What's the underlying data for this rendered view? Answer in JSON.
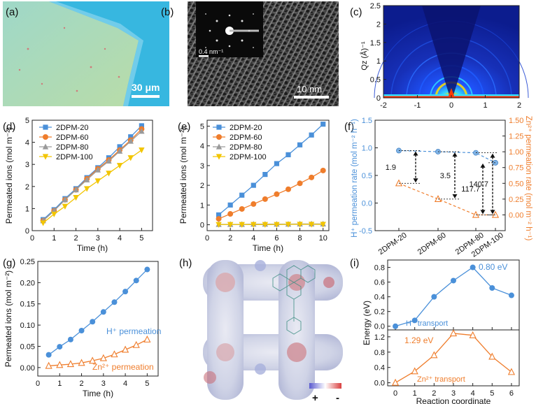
{
  "panel_labels": {
    "a": "(a)",
    "b": "(b)",
    "c": "(c)",
    "d": "(d)",
    "e": "(e)",
    "f": "(f)",
    "g": "(g)",
    "h": "(h)",
    "i": "(i)"
  },
  "colors": {
    "blue": "#4a90d9",
    "orange": "#ef7d2c",
    "gray": "#9a9a9a",
    "yellow": "#f2c500",
    "black": "#222222"
  },
  "panel_a": {
    "scale_bar": "30 μm"
  },
  "panel_b": {
    "inset_scale": "0.4 nm⁻¹",
    "scale_bar": "10 nm"
  },
  "panel_c": {
    "ylabel": "Qz (Å)⁻¹"
  },
  "panel_h": {
    "plus": "+",
    "minus": "-"
  },
  "chart_data": [
    {
      "id": "c",
      "type": "heatmap",
      "title": "",
      "xlabel": "",
      "ylabel": "Qz (Å)⁻¹",
      "xlim": [
        -2,
        2
      ],
      "ylim": [
        0,
        2.5
      ],
      "xticks": [
        -2,
        -1,
        0,
        1,
        2
      ],
      "yticks": [
        0,
        0.5,
        1,
        1.5,
        2,
        2.5
      ]
    },
    {
      "id": "d",
      "type": "line",
      "xlabel": "Time (h)",
      "ylabel": "Permeated ions (mol m⁻²)",
      "xlim": [
        0,
        5.5
      ],
      "ylim": [
        0,
        5
      ],
      "xticks": [
        0,
        1,
        2,
        3,
        4,
        5
      ],
      "yticks": [
        0,
        1,
        2,
        3,
        4,
        5
      ],
      "x": [
        0.5,
        1,
        1.5,
        2,
        2.5,
        3,
        3.5,
        4,
        4.5,
        5
      ],
      "series": [
        {
          "name": "2DPM-20",
          "color": "#4a90d9",
          "marker": "square",
          "values": [
            0.5,
            0.95,
            1.45,
            1.9,
            2.4,
            2.85,
            3.3,
            3.8,
            4.25,
            4.75
          ]
        },
        {
          "name": "2DPM-60",
          "color": "#ef7d2c",
          "marker": "circle",
          "values": [
            0.45,
            0.9,
            1.4,
            1.85,
            2.35,
            2.8,
            3.2,
            3.65,
            4.1,
            4.6
          ]
        },
        {
          "name": "2DPM-80",
          "color": "#9a9a9a",
          "marker": "triangle",
          "values": [
            0.45,
            0.9,
            1.4,
            1.85,
            2.3,
            2.75,
            3.15,
            3.6,
            4.05,
            4.5
          ]
        },
        {
          "name": "2DPM-100",
          "color": "#f2c500",
          "marker": "tri-down",
          "values": [
            0.35,
            0.75,
            1.1,
            1.5,
            1.9,
            2.25,
            2.6,
            2.95,
            3.3,
            3.65
          ]
        }
      ]
    },
    {
      "id": "e",
      "type": "line",
      "xlabel": "Time (h)",
      "ylabel": "Permeated ions (mol m⁻²)",
      "xlim": [
        0,
        10.5
      ],
      "ylim": [
        -0.3,
        5.3
      ],
      "xticks": [
        0,
        2,
        4,
        6,
        8,
        10
      ],
      "yticks": [
        0,
        1,
        2,
        3,
        4,
        5
      ],
      "x": [
        1,
        2,
        3,
        4,
        5,
        6,
        7,
        8,
        9,
        10
      ],
      "series": [
        {
          "name": "2DPM-20",
          "color": "#4a90d9",
          "marker": "square",
          "values": [
            0.5,
            1.0,
            1.5,
            2.0,
            2.55,
            3.1,
            3.55,
            4.05,
            4.55,
            5.1
          ]
        },
        {
          "name": "2DPM-60",
          "color": "#ef7d2c",
          "marker": "circle",
          "values": [
            0.3,
            0.55,
            0.8,
            1.05,
            1.3,
            1.55,
            1.8,
            2.1,
            2.4,
            2.75
          ]
        },
        {
          "name": "2DPM-80",
          "color": "#9a9a9a",
          "marker": "triangle",
          "values": [
            0.02,
            0.02,
            0.02,
            0.03,
            0.03,
            0.03,
            0.03,
            0.04,
            0.04,
            0.04
          ]
        },
        {
          "name": "2DPM-100",
          "color": "#f2c500",
          "marker": "tri-down",
          "values": [
            0.01,
            0.01,
            0.01,
            0.01,
            0.01,
            0.01,
            0.02,
            0.02,
            0.02,
            0.02
          ]
        }
      ]
    },
    {
      "id": "f",
      "type": "line",
      "ylabel_left": "H⁺ permeation rate (mol m⁻² h⁻¹)",
      "ylabel_right": "Zn²⁺ permeation rate (mol m⁻² h⁻¹)",
      "categories": [
        "2DPM-20",
        "2DPM-60",
        "2DPM-80",
        "2DPM-100"
      ],
      "ylim_left": [
        -0.5,
        1.5
      ],
      "ylim_right": [
        -0.25,
        1.5
      ],
      "yticks_left": [
        -0.5,
        0.0,
        0.5,
        1.0,
        1.5
      ],
      "yticks_right": [
        0.0,
        0.25,
        0.5,
        0.75,
        1.0,
        1.25,
        1.5
      ],
      "series": [
        {
          "name": "H⁺",
          "axis": "left",
          "color": "#4a90d9",
          "values": [
            0.95,
            0.93,
            0.91,
            0.73
          ]
        },
        {
          "name": "Zn²⁺",
          "axis": "right",
          "color": "#ef7d2c",
          "values": [
            0.5,
            0.25,
            0.0,
            0.0
          ]
        }
      ],
      "annotations": [
        "1.9",
        "3.5",
        "140.7",
        "117.7"
      ]
    },
    {
      "id": "g",
      "type": "line",
      "xlabel": "Time (h)",
      "ylabel": "Permeated ions (mol m⁻²)",
      "xlim": [
        0,
        5.5
      ],
      "ylim": [
        -0.02,
        0.25
      ],
      "xticks": [
        0,
        1,
        2,
        3,
        4,
        5
      ],
      "yticks": [
        0.0,
        0.05,
        0.1,
        0.15,
        0.2,
        0.25
      ],
      "x": [
        0.5,
        1,
        1.5,
        2,
        2.5,
        3,
        3.5,
        4,
        4.5,
        5
      ],
      "series": [
        {
          "name": "H⁺ permeation",
          "color": "#4a90d9",
          "marker": "circle",
          "values": [
            0.03,
            0.049,
            0.066,
            0.087,
            0.108,
            0.131,
            0.154,
            0.179,
            0.205,
            0.231
          ]
        },
        {
          "name": "Zn²⁺ permeation",
          "color": "#ef7d2c",
          "marker": "open-triangle",
          "values": [
            0.004,
            0.006,
            0.008,
            0.011,
            0.016,
            0.022,
            0.031,
            0.042,
            0.053,
            0.066
          ]
        }
      ]
    },
    {
      "id": "i",
      "type": "line",
      "xlabel": "Reaction coordinate",
      "ylabel": "Energy (eV)",
      "xlim": [
        -0.4,
        6.4
      ],
      "xticks": [
        0,
        1,
        2,
        3,
        4,
        5,
        6
      ],
      "top": {
        "ylim": [
          -0.05,
          0.9
        ],
        "yticks": [
          0.0,
          0.2,
          0.4,
          0.6,
          0.8
        ],
        "label": "H⁺ transport",
        "peak": "0.80 eV",
        "series": {
          "name": "H⁺",
          "color": "#4a90d9",
          "x": [
            0,
            1,
            2,
            3,
            4,
            5,
            6
          ],
          "values": [
            0.0,
            0.08,
            0.4,
            0.62,
            0.8,
            0.52,
            0.42
          ]
        }
      },
      "bottom": {
        "ylim": [
          -0.08,
          1.38
        ],
        "yticks": [
          0.0,
          0.4,
          0.8,
          1.2
        ],
        "label": "Zn²⁺ transport",
        "peak": "1.29 eV",
        "series": {
          "name": "Zn²⁺",
          "color": "#ef7d2c",
          "x": [
            0,
            1,
            2,
            3,
            4,
            5,
            6
          ],
          "values": [
            0.0,
            0.3,
            0.72,
            1.29,
            1.24,
            0.68,
            0.28
          ]
        }
      }
    }
  ]
}
